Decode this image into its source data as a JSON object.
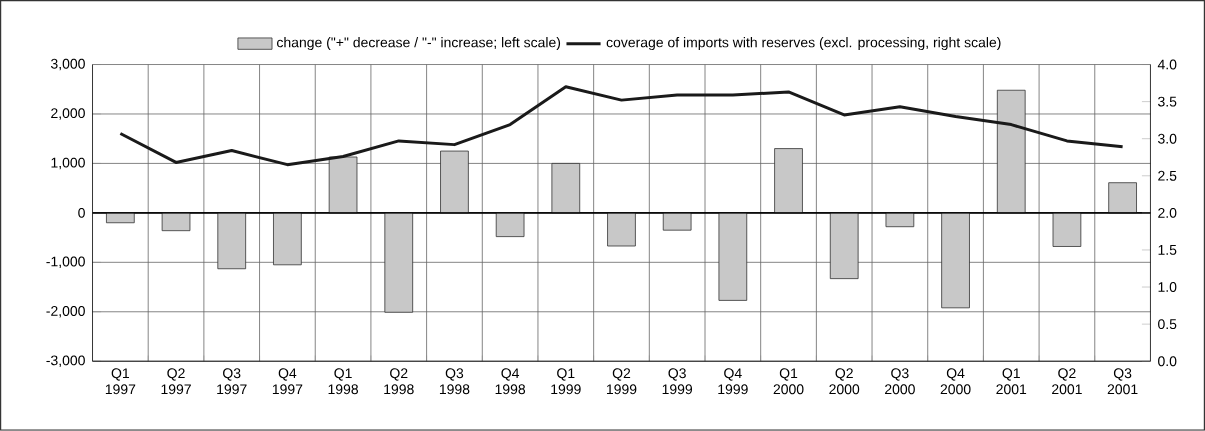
{
  "chart_data": {
    "type": "bar",
    "categories": [
      "Q1 1997",
      "Q2 1997",
      "Q3 1997",
      "Q4 1997",
      "Q1 1998",
      "Q2 1998",
      "Q3 1998",
      "Q4 1998",
      "Q1 1999",
      "Q2 1999",
      "Q3 1999",
      "Q4 1999",
      "Q1 2000",
      "Q2 2000",
      "Q3 2000",
      "Q4 2000",
      "Q1 2001",
      "Q2 2001",
      "Q3 2001"
    ],
    "series": [
      {
        "name": "change (\"+\" decrease / \"-\" increase; left scale)",
        "color": "#c8c8c8",
        "values": [
          -200,
          -360,
          -1130,
          -1050,
          1130,
          -2010,
          1250,
          -480,
          1000,
          -670,
          -350,
          -1770,
          1300,
          -1330,
          -280,
          -1920,
          2480,
          -680,
          610
        ]
      },
      {
        "name": "coverage of imports with reserves (excl. processing, right scale)",
        "type": "line",
        "axis": "y2",
        "color": "#1a1a1a",
        "values": [
          3.07,
          2.68,
          2.84,
          2.65,
          2.76,
          2.97,
          2.92,
          3.19,
          3.7,
          3.52,
          3.59,
          3.59,
          3.63,
          3.32,
          3.43,
          3.3,
          3.19,
          2.97,
          2.89
        ]
      }
    ],
    "ylim": [
      -3000,
      3000
    ],
    "yticks": [
      {
        "value": -3000,
        "label": "-3,000"
      },
      {
        "value": -2000,
        "label": "-2,000"
      },
      {
        "value": -1000,
        "label": "-1,000"
      },
      0,
      {
        "value": 1000,
        "label": "1,000"
      },
      {
        "value": 2000,
        "label": "2,000"
      },
      {
        "value": 3000,
        "label": "3,000"
      }
    ],
    "y2lim": [
      0,
      4
    ],
    "y2ticks": [
      {
        "value": 0,
        "label": "0.0"
      },
      {
        "value": 0.5,
        "label": "0.5"
      },
      {
        "value": 1,
        "label": "1.0"
      },
      {
        "value": 1.5,
        "label": "1.5"
      },
      {
        "value": 2,
        "label": "2.0"
      },
      {
        "value": 2.5,
        "label": "2.5"
      },
      {
        "value": 3,
        "label": "3.0"
      },
      {
        "value": 3.5,
        "label": "3.5"
      },
      {
        "value": 4,
        "label": "4.0"
      }
    ],
    "grid": true,
    "legend": "top"
  }
}
